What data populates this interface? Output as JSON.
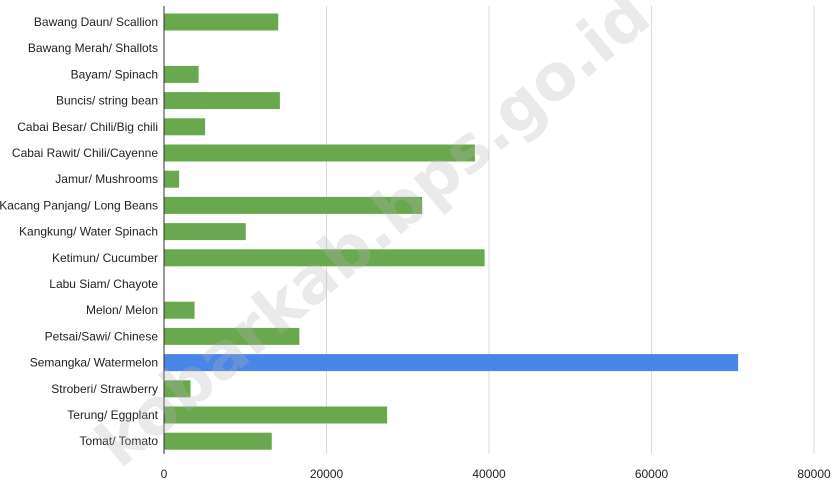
{
  "chart_data": {
    "type": "bar",
    "orientation": "horizontal",
    "categories": [
      "Bawang Daun/ Scallion",
      "Bawang Merah/ Shallots",
      "Bayam/ Spinach",
      "Buncis/ string bean",
      "Cabai Besar/ Chili/Big chili",
      "Cabai Rawit/ Chili/Cayenne",
      "Jamur/ Mushrooms",
      "Kacang Panjang/ Long Beans",
      "Kangkung/ Water Spinach",
      "Ketimun/ Cucumber",
      "Labu Siam/ Chayote",
      "Melon/ Melon",
      "Petsai/Sawi/ Chinese",
      "Semangka/ Watermelon",
      "Stroberi/ Strawberry",
      "Terung/ Eggplant",
      "Tomat/ Tomato"
    ],
    "values": [
      14000,
      0,
      4200,
      14200,
      5000,
      38200,
      1800,
      31700,
      10000,
      39400,
      0,
      3700,
      16600,
      70600,
      3200,
      27400,
      13200
    ],
    "highlight_index": 13,
    "colors": {
      "default": "#6aa84f",
      "highlight": "#4a86e8",
      "grid": "#d9d9d9"
    },
    "xlim": [
      0,
      80000
    ],
    "xticks": [
      0,
      20000,
      40000,
      60000,
      80000
    ],
    "xtick_labels": [
      "0",
      "20000",
      "40000",
      "60000",
      "80000"
    ],
    "grid": true,
    "title": "",
    "xlabel": "",
    "ylabel": ""
  },
  "watermark": "kobarkab.bps.go.id"
}
